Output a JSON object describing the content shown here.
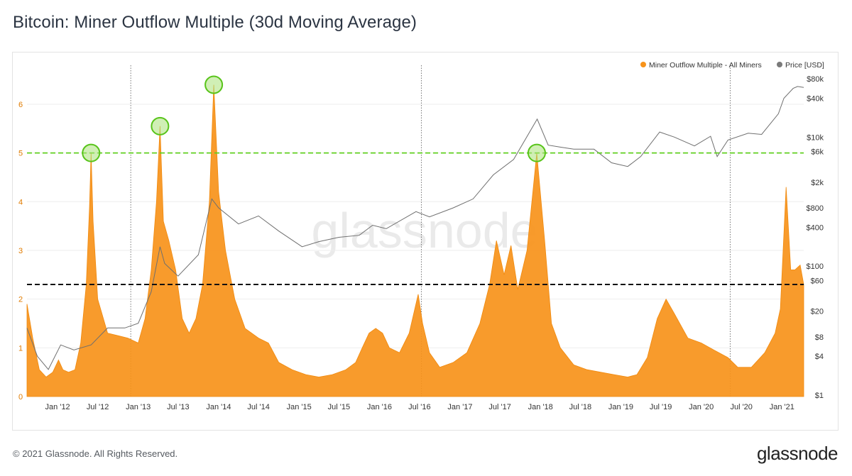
{
  "page": {
    "title": "Bitcoin: Miner Outflow Multiple (30d Moving Average)",
    "copyright": "© 2021 Glassnode. All Rights Reserved.",
    "logo": "glassnode",
    "watermark": "glassnode"
  },
  "chart_data": {
    "type": "area",
    "title": "Bitcoin: Miner Outflow Multiple (30d Moving Average)",
    "legend": [
      {
        "name": "Miner Outflow Multiple - All Miners",
        "color": "#f7931a"
      },
      {
        "name": "Price [USD]",
        "color": "#7a7a7a"
      }
    ],
    "legend_position": "top-right",
    "grid": "horizontal",
    "x_ticks": [
      "Jan '12",
      "Jul '12",
      "Jan '13",
      "Jul '13",
      "Jan '14",
      "Jul '14",
      "Jan '15",
      "Jul '15",
      "Jan '16",
      "Jul '16",
      "Jan '17",
      "Jul '17",
      "Jan '18",
      "Jul '18",
      "Jan '19",
      "Jul '19",
      "Jan '20",
      "Jul '20",
      "Jan '21"
    ],
    "xlim": [
      "2011-08-15",
      "2021-04-10"
    ],
    "y_left": {
      "label": "",
      "ticks": [
        "0",
        "1",
        "2",
        "3",
        "4",
        "5",
        "6"
      ],
      "ylim": [
        0,
        6.8
      ]
    },
    "y_right": {
      "label": "",
      "scale": "log",
      "ticks": [
        "$1",
        "$4",
        "$8",
        "$20",
        "$60",
        "$100",
        "$400",
        "$800",
        "$2k",
        "$6k",
        "$10k",
        "$40k",
        "$80k"
      ]
    },
    "annotations": {
      "green_dashed_level": 5.0,
      "black_dashed_level": 2.3,
      "green_circles": [
        {
          "date": "2012-06-01",
          "value": 5.0
        },
        {
          "date": "2013-04-10",
          "value": 5.55
        },
        {
          "date": "2013-12-10",
          "value": 6.4
        },
        {
          "date": "2017-12-15",
          "value": 5.0
        }
      ],
      "vertical_dotted_dates": [
        "2012-11-28",
        "2016-07-09",
        "2020-05-11"
      ]
    },
    "series": [
      {
        "name": "Miner Outflow Multiple - All Miners",
        "color": "#f7931a",
        "points": [
          [
            "2011-08-15",
            1.9
          ],
          [
            "2011-09-10",
            1.2
          ],
          [
            "2011-10-10",
            0.55
          ],
          [
            "2011-11-10",
            0.4
          ],
          [
            "2011-12-10",
            0.5
          ],
          [
            "2012-01-05",
            0.75
          ],
          [
            "2012-01-25",
            0.55
          ],
          [
            "2012-02-20",
            0.5
          ],
          [
            "2012-03-20",
            0.55
          ],
          [
            "2012-04-15",
            1.1
          ],
          [
            "2012-05-10",
            2.3
          ],
          [
            "2012-05-25",
            3.9
          ],
          [
            "2012-06-01",
            5.0
          ],
          [
            "2012-06-10",
            3.6
          ],
          [
            "2012-07-01",
            2.0
          ],
          [
            "2012-08-15",
            1.3
          ],
          [
            "2012-10-01",
            1.25
          ],
          [
            "2012-11-15",
            1.2
          ],
          [
            "2013-01-01",
            1.1
          ],
          [
            "2013-02-01",
            1.6
          ],
          [
            "2013-03-01",
            2.6
          ],
          [
            "2013-03-25",
            4.0
          ],
          [
            "2013-04-10",
            5.55
          ],
          [
            "2013-04-25",
            3.6
          ],
          [
            "2013-05-20",
            3.2
          ],
          [
            "2013-06-20",
            2.6
          ],
          [
            "2013-07-20",
            1.6
          ],
          [
            "2013-08-20",
            1.3
          ],
          [
            "2013-09-20",
            1.6
          ],
          [
            "2013-10-20",
            2.3
          ],
          [
            "2013-11-20",
            4.0
          ],
          [
            "2013-12-10",
            6.4
          ],
          [
            "2014-01-01",
            4.2
          ],
          [
            "2014-02-01",
            3.0
          ],
          [
            "2014-03-15",
            2.0
          ],
          [
            "2014-05-01",
            1.4
          ],
          [
            "2014-07-01",
            1.2
          ],
          [
            "2014-08-15",
            1.1
          ],
          [
            "2014-10-01",
            0.7
          ],
          [
            "2014-12-01",
            0.55
          ],
          [
            "2015-02-01",
            0.45
          ],
          [
            "2015-04-01",
            0.4
          ],
          [
            "2015-06-01",
            0.45
          ],
          [
            "2015-08-01",
            0.55
          ],
          [
            "2015-09-15",
            0.7
          ],
          [
            "2015-10-15",
            1.0
          ],
          [
            "2015-11-15",
            1.3
          ],
          [
            "2015-12-15",
            1.4
          ],
          [
            "2016-01-15",
            1.3
          ],
          [
            "2016-02-15",
            1.0
          ],
          [
            "2016-04-01",
            0.9
          ],
          [
            "2016-05-15",
            1.3
          ],
          [
            "2016-06-25",
            2.1
          ],
          [
            "2016-07-15",
            1.5
          ],
          [
            "2016-08-15",
            0.9
          ],
          [
            "2016-10-01",
            0.6
          ],
          [
            "2016-12-01",
            0.7
          ],
          [
            "2017-02-01",
            0.9
          ],
          [
            "2017-04-01",
            1.5
          ],
          [
            "2017-05-15",
            2.3
          ],
          [
            "2017-06-15",
            3.2
          ],
          [
            "2017-07-20",
            2.5
          ],
          [
            "2017-08-20",
            3.1
          ],
          [
            "2017-09-20",
            2.2
          ],
          [
            "2017-11-01",
            3.0
          ],
          [
            "2017-12-15",
            5.0
          ],
          [
            "2018-01-20",
            3.2
          ],
          [
            "2018-02-20",
            1.5
          ],
          [
            "2018-04-01",
            1.0
          ],
          [
            "2018-06-01",
            0.65
          ],
          [
            "2018-08-01",
            0.55
          ],
          [
            "2018-10-01",
            0.5
          ],
          [
            "2018-12-01",
            0.45
          ],
          [
            "2019-02-01",
            0.4
          ],
          [
            "2019-03-15",
            0.45
          ],
          [
            "2019-05-01",
            0.8
          ],
          [
            "2019-06-15",
            1.6
          ],
          [
            "2019-07-25",
            2.0
          ],
          [
            "2019-09-01",
            1.7
          ],
          [
            "2019-11-01",
            1.2
          ],
          [
            "2020-01-01",
            1.1
          ],
          [
            "2020-03-01",
            0.95
          ],
          [
            "2020-05-01",
            0.8
          ],
          [
            "2020-06-15",
            0.6
          ],
          [
            "2020-08-15",
            0.6
          ],
          [
            "2020-10-15",
            0.9
          ],
          [
            "2020-12-01",
            1.3
          ],
          [
            "2020-12-25",
            1.8
          ],
          [
            "2021-01-20",
            4.3
          ],
          [
            "2021-02-10",
            2.6
          ],
          [
            "2021-03-01",
            2.6
          ],
          [
            "2021-03-25",
            2.7
          ],
          [
            "2021-04-10",
            2.3
          ]
        ]
      },
      {
        "name": "Price [USD]",
        "color": "#7a7a7a",
        "points": [
          [
            "2011-08-15",
            11
          ],
          [
            "2011-10-01",
            4
          ],
          [
            "2011-11-20",
            2.5
          ],
          [
            "2012-01-15",
            6
          ],
          [
            "2012-03-15",
            5
          ],
          [
            "2012-06-01",
            6
          ],
          [
            "2012-08-15",
            11
          ],
          [
            "2012-11-01",
            11
          ],
          [
            "2013-01-01",
            13
          ],
          [
            "2013-03-01",
            40
          ],
          [
            "2013-04-10",
            200
          ],
          [
            "2013-05-01",
            110
          ],
          [
            "2013-07-01",
            70
          ],
          [
            "2013-10-01",
            150
          ],
          [
            "2013-12-01",
            1100
          ],
          [
            "2014-01-01",
            800
          ],
          [
            "2014-04-01",
            450
          ],
          [
            "2014-07-01",
            600
          ],
          [
            "2014-10-01",
            350
          ],
          [
            "2015-01-15",
            200
          ],
          [
            "2015-04-01",
            240
          ],
          [
            "2015-07-01",
            280
          ],
          [
            "2015-10-01",
            300
          ],
          [
            "2015-12-01",
            430
          ],
          [
            "2016-02-01",
            380
          ],
          [
            "2016-06-15",
            700
          ],
          [
            "2016-08-15",
            580
          ],
          [
            "2016-12-01",
            800
          ],
          [
            "2017-03-01",
            1100
          ],
          [
            "2017-06-01",
            2600
          ],
          [
            "2017-09-01",
            4500
          ],
          [
            "2017-12-17",
            19000
          ],
          [
            "2018-02-05",
            7500
          ],
          [
            "2018-04-01",
            7000
          ],
          [
            "2018-06-01",
            6500
          ],
          [
            "2018-09-01",
            6500
          ],
          [
            "2018-11-20",
            4000
          ],
          [
            "2019-02-01",
            3500
          ],
          [
            "2019-04-01",
            5000
          ],
          [
            "2019-06-26",
            12000
          ],
          [
            "2019-09-01",
            10000
          ],
          [
            "2019-12-01",
            7300
          ],
          [
            "2020-02-12",
            10300
          ],
          [
            "2020-03-13",
            5000
          ],
          [
            "2020-05-01",
            9000
          ],
          [
            "2020-08-01",
            11500
          ],
          [
            "2020-10-01",
            11000
          ],
          [
            "2020-12-16",
            23000
          ],
          [
            "2021-01-10",
            40000
          ],
          [
            "2021-02-21",
            57000
          ],
          [
            "2021-03-13",
            61000
          ],
          [
            "2021-04-10",
            59000
          ]
        ]
      }
    ]
  }
}
